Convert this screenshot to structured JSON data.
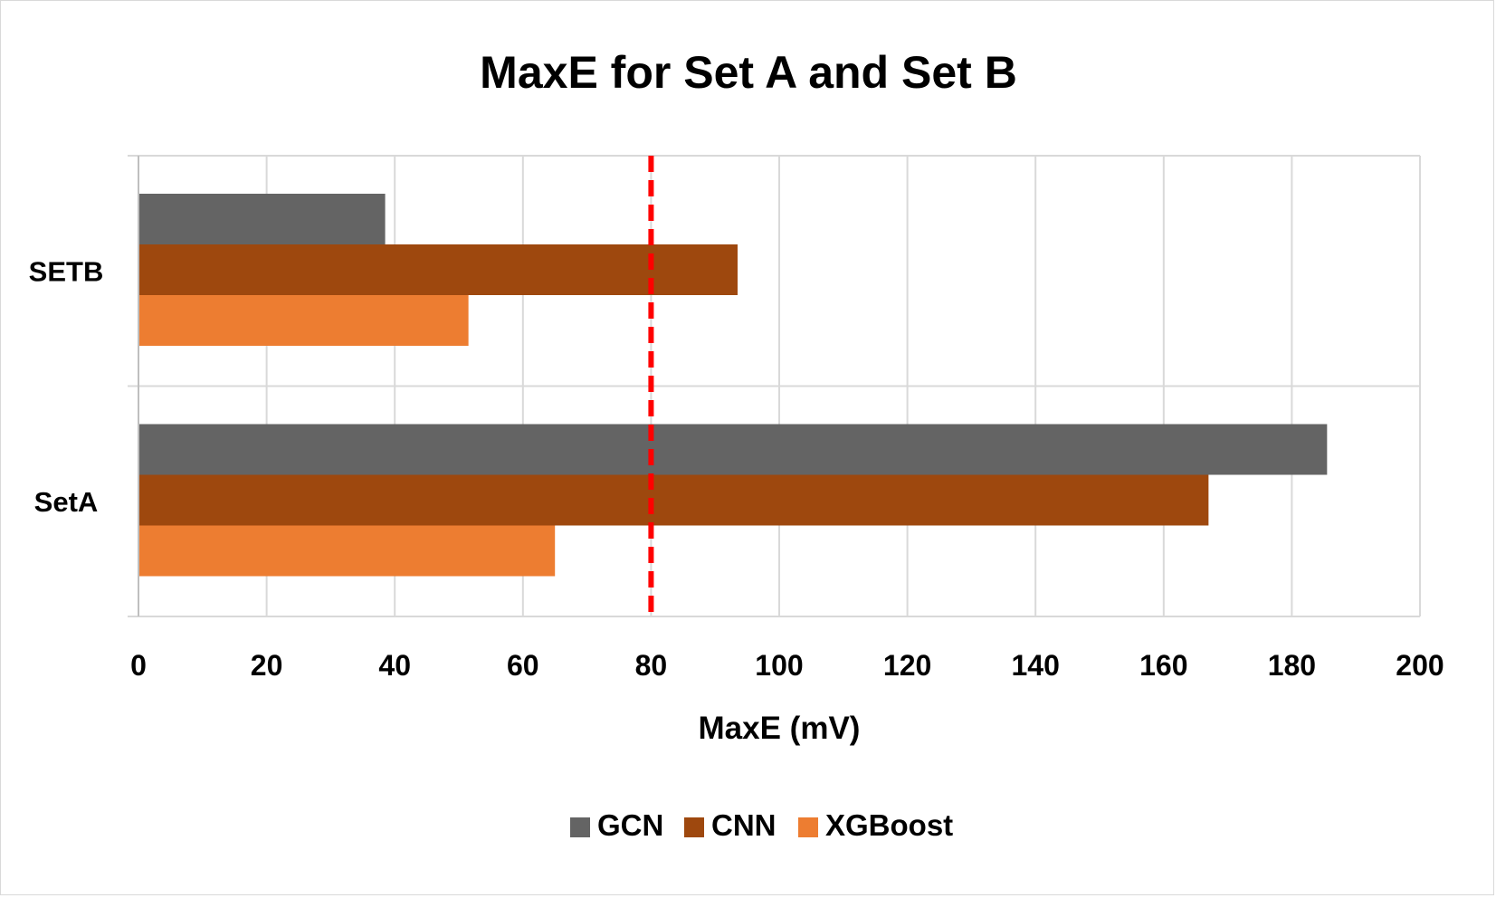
{
  "chart_data": {
    "type": "bar",
    "orientation": "horizontal",
    "title": "MaxE for Set A and Set B",
    "xlabel": "MaxE (mV)",
    "ylabel": "",
    "categories": [
      "SetA",
      "SETB"
    ],
    "xlim": [
      0,
      200
    ],
    "xticks": [
      "0",
      "20",
      "40",
      "60",
      "80",
      "100",
      "120",
      "140",
      "160",
      "180",
      "200"
    ],
    "grid": true,
    "legend_position": "bottom",
    "series": [
      {
        "name": "GCN",
        "values": [
          185.5,
          38.5
        ],
        "color": "#646464"
      },
      {
        "name": "CNN",
        "values": [
          167,
          93.5
        ],
        "color": "#9e480e"
      },
      {
        "name": "XGBoost",
        "values": [
          65,
          51.5
        ],
        "color": "#ed7d31"
      }
    ],
    "reference_line": {
      "value": 80,
      "color": "#ff0000",
      "style": "dashed"
    }
  }
}
